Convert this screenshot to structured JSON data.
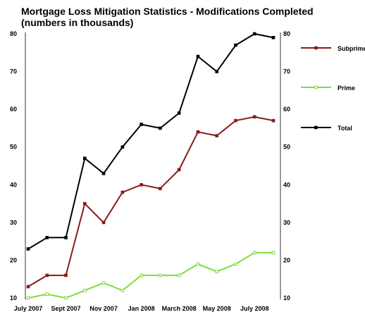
{
  "chart_data": {
    "type": "line",
    "title": "Mortgage Loss Mitigation Statistics - Modifications Completed",
    "subtitle": "(numbers in thousands)",
    "ylim": [
      10,
      80
    ],
    "yticks": [
      10,
      20,
      30,
      40,
      50,
      60,
      70,
      80
    ],
    "x_tick_labels": [
      "July 2007",
      "Sept 2007",
      "Nov 2007",
      "Jan 2008",
      "March 2008",
      "May 2008",
      "July 2008"
    ],
    "x": [
      "Jul 2007",
      "Aug 2007",
      "Sep 2007",
      "Oct 2007",
      "Nov 2007",
      "Dec 2007",
      "Jan 2008",
      "Feb 2008",
      "Mar 2008",
      "Apr 2008",
      "May 2008",
      "Jun 2008",
      "Jul 2008",
      "Aug 2008"
    ],
    "grid": false,
    "legend_position": "right",
    "series": [
      {
        "name": "Subprime",
        "color": "#8b1a1a",
        "values": [
          13,
          16,
          16,
          35,
          30,
          38,
          40,
          39,
          44,
          54,
          53,
          57,
          58,
          57
        ]
      },
      {
        "name": "Prime",
        "color": "#7ddd3a",
        "values": [
          10,
          11,
          10,
          12,
          14,
          12,
          16,
          16,
          16,
          19,
          17,
          19,
          22,
          22
        ]
      },
      {
        "name": "Total",
        "color": "#000000",
        "values": [
          23,
          26,
          26,
          47,
          43,
          50,
          56,
          55,
          59,
          74,
          70,
          77,
          80,
          79
        ]
      }
    ]
  }
}
